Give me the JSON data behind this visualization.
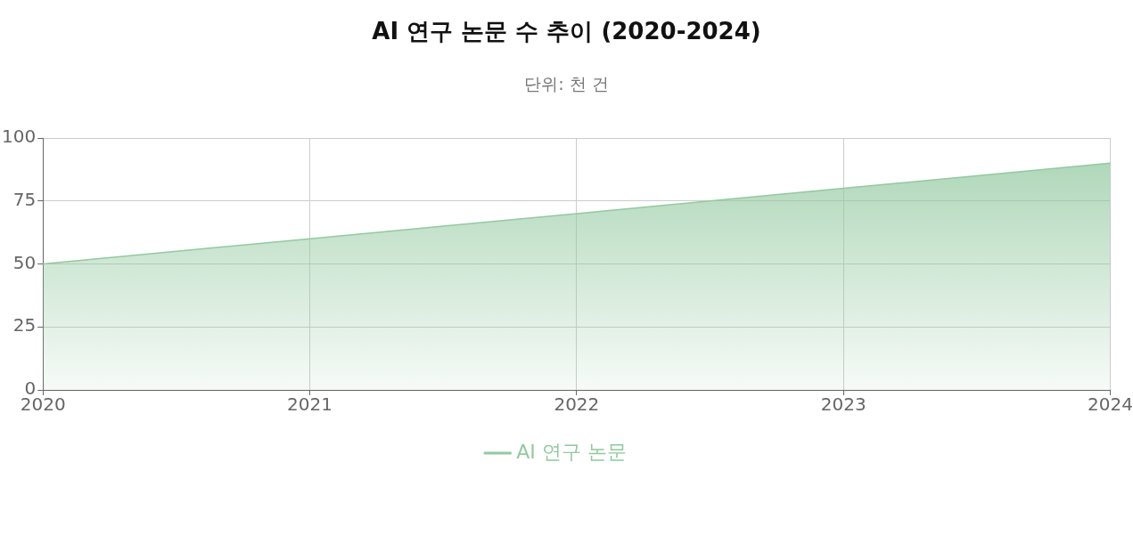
{
  "chart_data": {
    "type": "area",
    "title": "AI 연구 논문 수 추이 (2020-2024)",
    "subtitle": "단위: 천 건",
    "categories": [
      "2020",
      "2021",
      "2022",
      "2023",
      "2024"
    ],
    "series": [
      {
        "name": "AI 연구 논문",
        "color": "#93c9a0",
        "values": [
          50,
          60,
          70,
          80,
          90
        ]
      }
    ],
    "ylim": [
      0,
      100
    ],
    "yticks": [
      0,
      25,
      50,
      75,
      100
    ],
    "grid": true,
    "legend": "bottom",
    "marker": "none",
    "line_style": "solid"
  }
}
